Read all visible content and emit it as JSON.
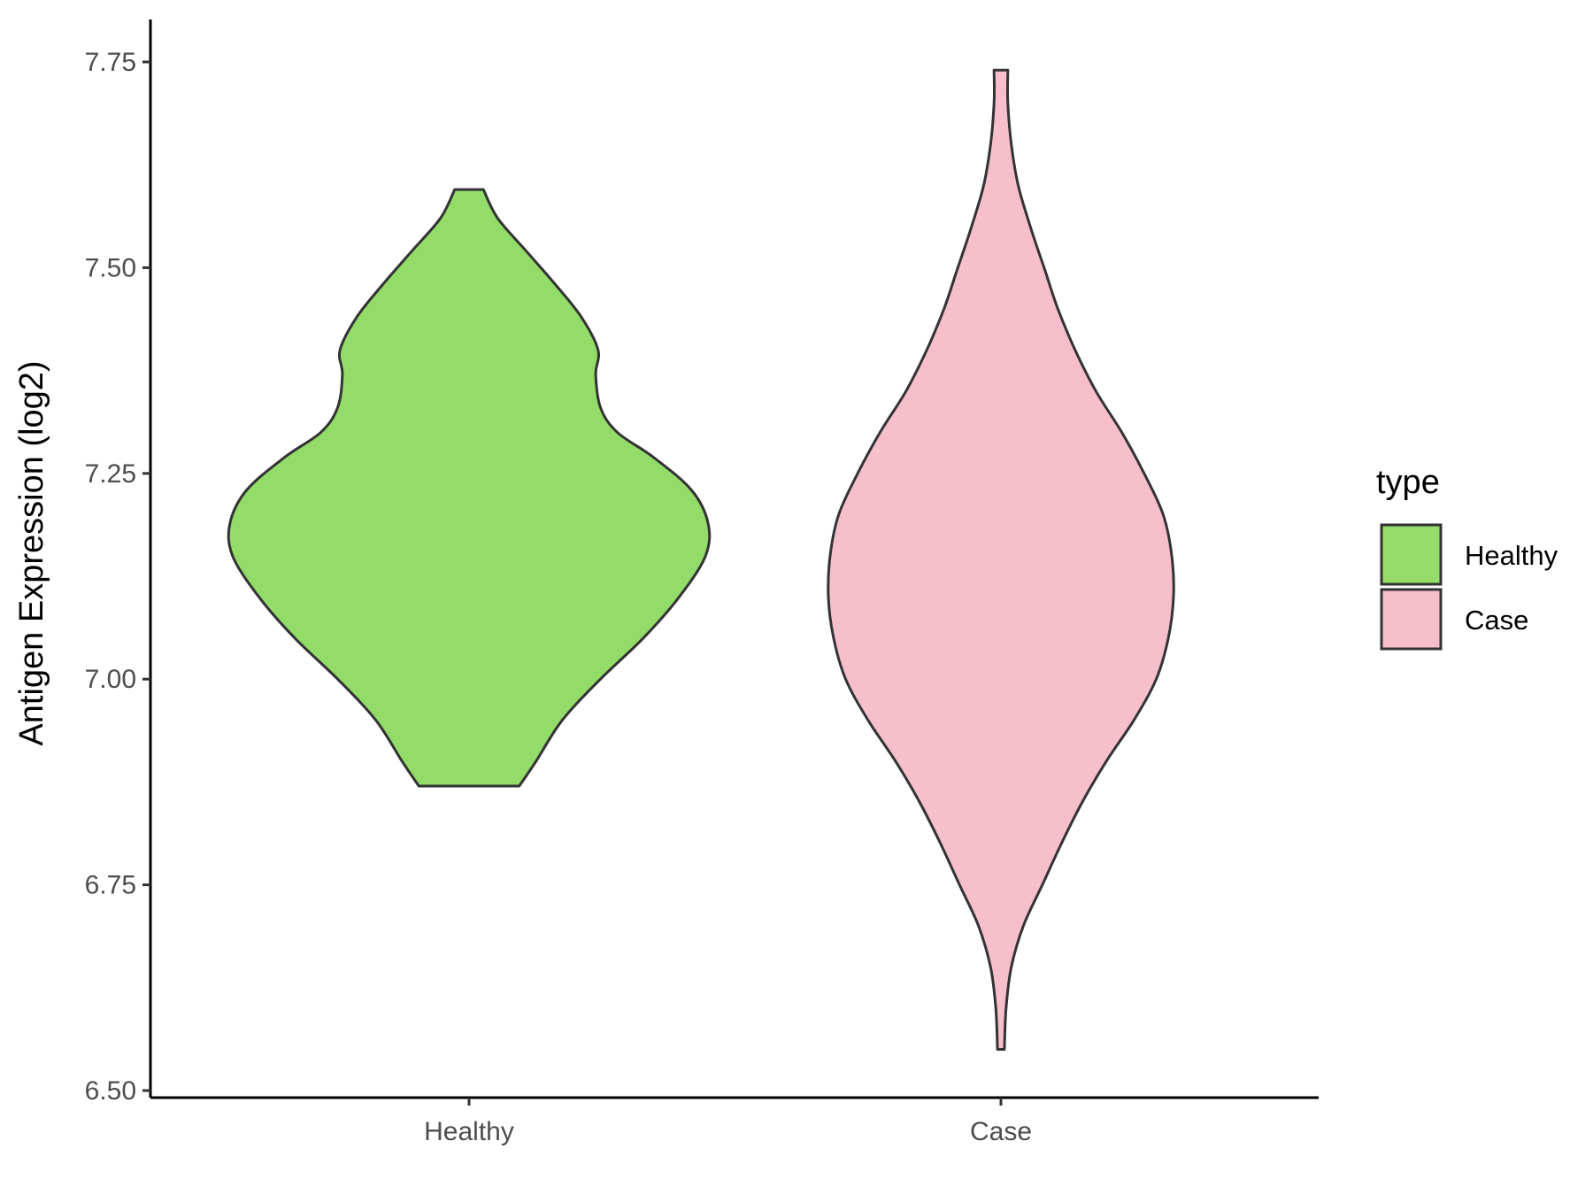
{
  "chart_data": {
    "type": "violin",
    "title": "",
    "xlabel": "",
    "ylabel": "Antigen Expression (log2)",
    "ylim": [
      6.48,
      7.8
    ],
    "yticks": [
      "6.50",
      "6.75",
      "7.00",
      "7.25",
      "7.50",
      "7.75"
    ],
    "ytick_values": [
      6.5,
      6.75,
      7.0,
      7.25,
      7.5,
      7.75
    ],
    "categories": [
      "Healthy",
      "Case"
    ],
    "grid": false,
    "legend": {
      "title": "type",
      "position": "right",
      "entries": [
        "Healthy",
        "Case"
      ]
    },
    "series": [
      {
        "name": "Healthy",
        "color": "#93dc6a",
        "min": 6.87,
        "max": 7.595,
        "density_profile": [
          [
            6.87,
            0.21
          ],
          [
            6.9,
            0.28
          ],
          [
            6.95,
            0.39
          ],
          [
            7.0,
            0.55
          ],
          [
            7.05,
            0.73
          ],
          [
            7.1,
            0.88
          ],
          [
            7.15,
            0.99
          ],
          [
            7.19,
            1.0
          ],
          [
            7.23,
            0.93
          ],
          [
            7.27,
            0.77
          ],
          [
            7.3,
            0.62
          ],
          [
            7.33,
            0.55
          ],
          [
            7.37,
            0.53
          ],
          [
            7.4,
            0.54
          ],
          [
            7.44,
            0.47
          ],
          [
            7.48,
            0.36
          ],
          [
            7.52,
            0.24
          ],
          [
            7.56,
            0.12
          ],
          [
            7.595,
            0.06
          ]
        ]
      },
      {
        "name": "Case",
        "color": "#f7bfcb",
        "min": 6.55,
        "max": 7.74,
        "density_profile": [
          [
            6.55,
            0.02
          ],
          [
            6.6,
            0.03
          ],
          [
            6.65,
            0.06
          ],
          [
            6.7,
            0.13
          ],
          [
            6.75,
            0.24
          ],
          [
            6.8,
            0.35
          ],
          [
            6.85,
            0.47
          ],
          [
            6.9,
            0.61
          ],
          [
            6.95,
            0.77
          ],
          [
            7.0,
            0.9
          ],
          [
            7.05,
            0.97
          ],
          [
            7.1,
            1.0
          ],
          [
            7.15,
            0.99
          ],
          [
            7.2,
            0.94
          ],
          [
            7.25,
            0.83
          ],
          [
            7.3,
            0.7
          ],
          [
            7.35,
            0.55
          ],
          [
            7.4,
            0.43
          ],
          [
            7.45,
            0.33
          ],
          [
            7.5,
            0.25
          ],
          [
            7.55,
            0.17
          ],
          [
            7.6,
            0.1
          ],
          [
            7.65,
            0.06
          ],
          [
            7.7,
            0.04
          ],
          [
            7.74,
            0.04
          ]
        ]
      }
    ]
  }
}
